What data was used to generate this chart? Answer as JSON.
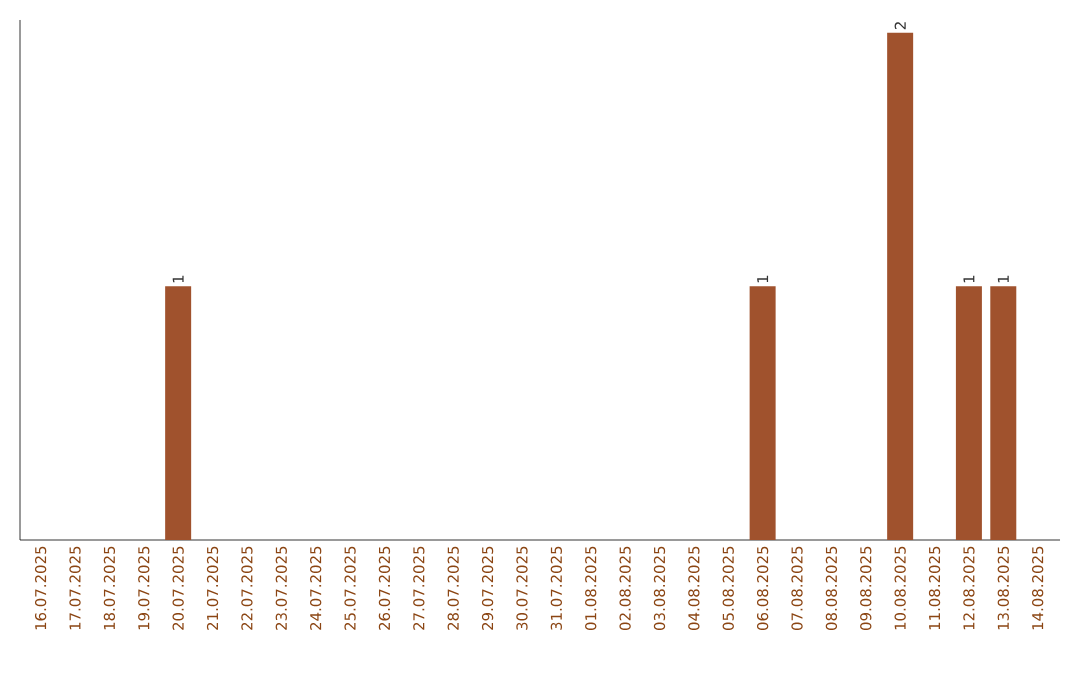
{
  "chart_data": {
    "type": "bar",
    "categories": [
      "16.07.2025",
      "17.07.2025",
      "18.07.2025",
      "19.07.2025",
      "20.07.2025",
      "21.07.2025",
      "22.07.2025",
      "23.07.2025",
      "24.07.2025",
      "25.07.2025",
      "26.07.2025",
      "27.07.2025",
      "28.07.2025",
      "29.07.2025",
      "30.07.2025",
      "31.07.2025",
      "01.08.2025",
      "02.08.2025",
      "03.08.2025",
      "04.08.2025",
      "05.08.2025",
      "06.08.2025",
      "07.08.2025",
      "08.08.2025",
      "09.08.2025",
      "10.08.2025",
      "11.08.2025",
      "12.08.2025",
      "13.08.2025",
      "14.08.2025"
    ],
    "values": [
      0,
      0,
      0,
      0,
      1,
      0,
      0,
      0,
      0,
      0,
      0,
      0,
      0,
      0,
      0,
      0,
      0,
      0,
      0,
      0,
      0,
      1,
      0,
      0,
      0,
      2,
      0,
      1,
      1,
      0
    ],
    "value_labels": [
      null,
      null,
      null,
      null,
      "1",
      null,
      null,
      null,
      null,
      null,
      null,
      null,
      null,
      null,
      null,
      null,
      null,
      null,
      null,
      null,
      null,
      "1",
      null,
      null,
      null,
      "2",
      null,
      "1",
      "1",
      null
    ],
    "color": "#a0522d",
    "ylim": [
      0,
      2.05
    ],
    "tick_labels": "x"
  }
}
